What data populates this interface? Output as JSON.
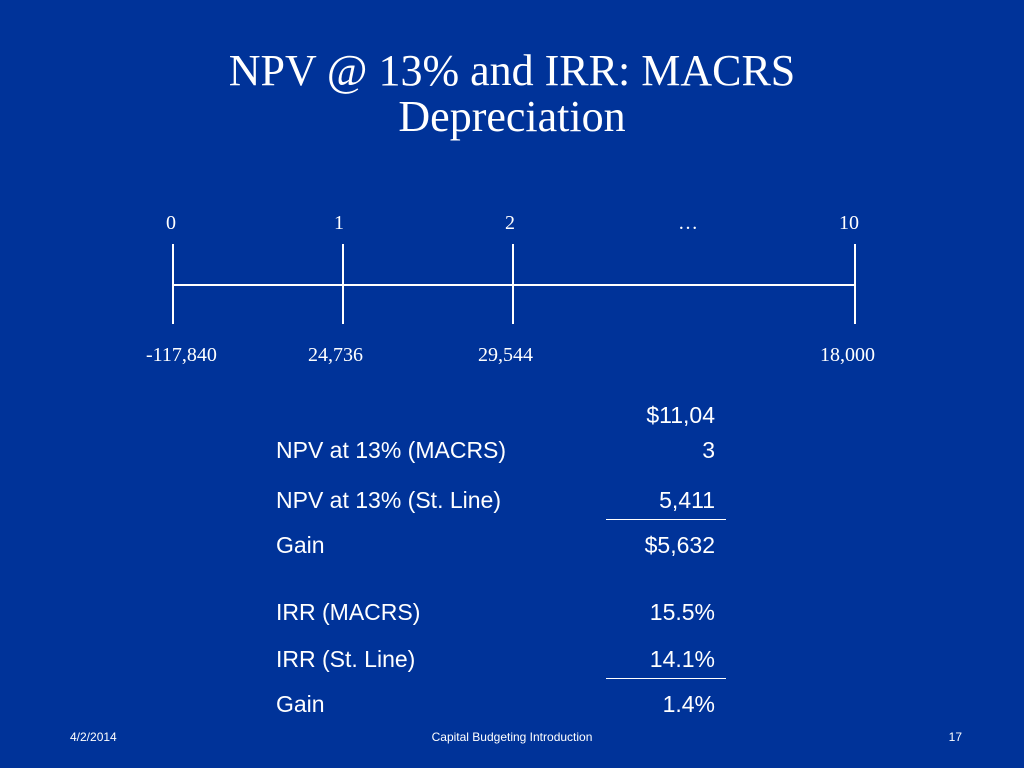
{
  "title": {
    "line1": "NPV @ 13% and IRR: MACRS",
    "line2": "Depreciation"
  },
  "timeline": {
    "periods": [
      "0",
      "1",
      "2",
      "…",
      "10"
    ],
    "cash_flows": [
      "-117,840",
      "24,736",
      "29,544",
      "18,000"
    ]
  },
  "results": {
    "npv_macrs": {
      "label": "NPV at 13% (MACRS)",
      "value_line1": "$11,04",
      "value_line2": "3"
    },
    "npv_sl": {
      "label": "NPV at 13% (St. Line)",
      "value": "5,411"
    },
    "npv_gain": {
      "label": "Gain",
      "value": "$5,632"
    },
    "irr_macrs": {
      "label": "IRR (MACRS)",
      "value": "15.5%"
    },
    "irr_sl": {
      "label": "IRR (St. Line)",
      "value": "14.1%"
    },
    "irr_gain": {
      "label": "Gain",
      "value": "1.4%"
    }
  },
  "footer": {
    "date": "4/2/2014",
    "center": "Capital Budgeting Introduction",
    "page": "17"
  }
}
